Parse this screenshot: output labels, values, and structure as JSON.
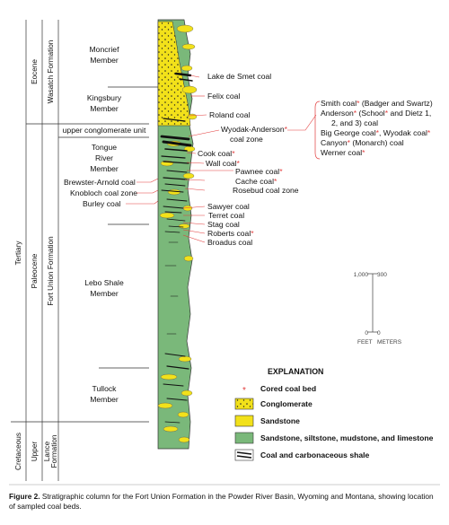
{
  "chronostratigraphy": {
    "system": "Tertiary",
    "cretaceous": "Cretaceous",
    "eocene": "Eocene",
    "paleocene": "Paleocene",
    "upper": "Upper"
  },
  "formations": {
    "wasatch": "Wasatch Formation",
    "fort_union": "Fort Union Formation",
    "lance": "Lance Formation"
  },
  "members": {
    "moncrief": [
      "Moncrief",
      "Member"
    ],
    "kingsbury": [
      "Kingsbury",
      "Member"
    ],
    "upper_conglomerate": "upper conglomerate unit",
    "tongue_river": [
      "Tongue",
      "River",
      "Member"
    ],
    "lebo": [
      "Lebo Shale",
      "Member"
    ],
    "tullock": [
      "Tullock",
      "Member"
    ]
  },
  "left_coals": {
    "brewster": "Brewster-Arnold coal",
    "knobloch": "Knobloch coal zone",
    "burley": "Burley coal"
  },
  "right_coals": {
    "lake_de_smet": "Lake de Smet coal",
    "felix": "Felix coal",
    "roland": "Roland coal",
    "wyodak_1": "Wyodak-Anderson",
    "wyodak_2": "coal zone",
    "cook": "Cook coal",
    "wall": "Wall coal",
    "pawnee": "Pawnee coal",
    "cache": "Cache coal",
    "rosebud": "Rosebud coal zone",
    "sawyer": "Sawyer coal",
    "terret": "Terret coal",
    "stag": "Stag coal",
    "roberts": "Roberts coal",
    "broadus": "Broadus coal"
  },
  "zone_list": {
    "smith_a": "Smith coal",
    "smith_b": "(Badger and Swartz)",
    "anderson_a": "Anderson",
    "anderson_b": "(School",
    "anderson_c": "and Dietz 1,",
    "anderson_2": "2, and 3) coal",
    "big_george_a": "Big George coal",
    "big_george_b": ", Wyodak coal",
    "canyon_a": "Canyon",
    "canyon_b": "(Monarch) coal",
    "werner": "Werner coal"
  },
  "star": "*",
  "scale": {
    "feet_top": "1,000",
    "meters_top": "300",
    "feet_bottom": "0",
    "meters_bottom": "0",
    "feet": "FEET",
    "meters": "METERS"
  },
  "legend": {
    "title": "EXPLANATION",
    "cored": "Cored coal bed",
    "conglomerate": "Conglomerate",
    "sandstone": "Sandstone",
    "mixed": "Sandstone, siltstone, mudstone, and limestone",
    "coal": "Coal and carbonaceous shale"
  },
  "colors": {
    "green": "#7ab87a",
    "yellow": "#f2e11a",
    "coal": "#111111",
    "star": "#e23b3b"
  },
  "caption": {
    "label": "Figure 2.",
    "text": "Stratigraphic column for the Fort Union Formation in the Powder River Basin, Wyoming and Montana, showing location of sampled coal beds."
  }
}
